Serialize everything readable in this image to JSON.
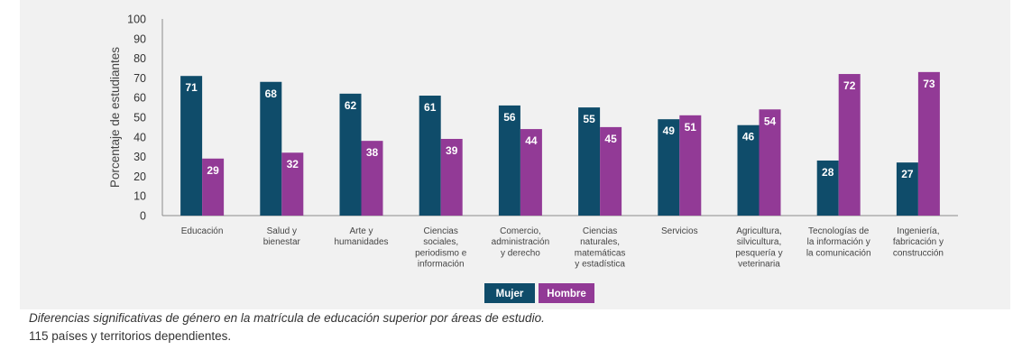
{
  "chart_data": {
    "type": "bar",
    "categories": [
      [
        "Educación"
      ],
      [
        "Salud y",
        "bienestar"
      ],
      [
        "Arte y",
        "humanidades"
      ],
      [
        "Ciencias",
        "sociales,",
        "periodismo e",
        "información"
      ],
      [
        "Comercio,",
        "administración",
        "y derecho"
      ],
      [
        "Ciencias",
        "naturales,",
        "matemáticas",
        "y estadística"
      ],
      [
        "Servicios"
      ],
      [
        "Agricultura,",
        "silvicultura,",
        "pesquería y",
        "veterinaria"
      ],
      [
        "Tecnologías de",
        "la información y",
        "la comunicación"
      ],
      [
        "Ingeniería,",
        "fabricación y",
        "construcción"
      ]
    ],
    "series": [
      {
        "name": "Mujer",
        "values": [
          71,
          68,
          62,
          61,
          56,
          55,
          49,
          46,
          28,
          27
        ]
      },
      {
        "name": "Hombre",
        "values": [
          29,
          32,
          38,
          39,
          44,
          45,
          51,
          54,
          72,
          73
        ]
      }
    ],
    "ylabel": "Porcentaje de estudiantes",
    "ylim": [
      0,
      100
    ],
    "yticks": [
      0,
      10,
      20,
      30,
      40,
      50,
      60,
      70,
      80,
      90,
      100
    ],
    "grid": false,
    "legend_position": "bottom-center",
    "colors": {
      "Mujer": "#0f4c6a",
      "Hombre": "#923a96",
      "panel": "#f1f1f1"
    }
  },
  "caption": {
    "title": "Diferencias significativas de género en la matrícula de educación superior por áreas de estudio.",
    "subtitle": "115 países y territorios dependientes."
  }
}
